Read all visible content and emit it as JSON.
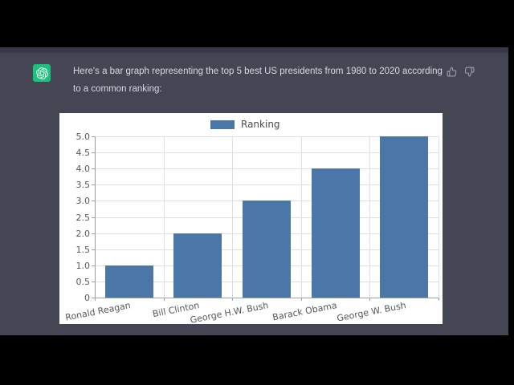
{
  "window": {
    "letterbox_color": "#000000",
    "page_strip_color": "#373948",
    "chat_bg_color": "#444654"
  },
  "avatar": {
    "name": "ChatGPT",
    "bg_color": "#19c37d"
  },
  "message": {
    "line1": "Here's a bar graph representing the top 5 best US presidents from 1980 to 2020 according",
    "line2": "to a common ranking:",
    "text_color": "#d7dae1"
  },
  "feedback": {
    "thumbs_up": "thumbs up",
    "thumbs_down": "thumbs down",
    "icon_color": "#9b9eae"
  },
  "chart_data": {
    "type": "bar",
    "title": "",
    "xlabel": "",
    "ylabel": "",
    "categories": [
      "Ronald Reagan",
      "Bill Clinton",
      "George H.W. Bush",
      "Barack Obama",
      "George W. Bush"
    ],
    "series": [
      {
        "name": "Ranking",
        "values": [
          1,
          2,
          3,
          4,
          5
        ]
      }
    ],
    "ylim": [
      0,
      5
    ],
    "ytick_step": 0.5,
    "grid": true,
    "legend_position": "top-center",
    "bar_color": "#4a76a8",
    "grid_color": "#dde0e4",
    "axis_color": "#9aa1a8",
    "tick_text_color": "#54585e",
    "plot_bg": "#ffffff"
  }
}
